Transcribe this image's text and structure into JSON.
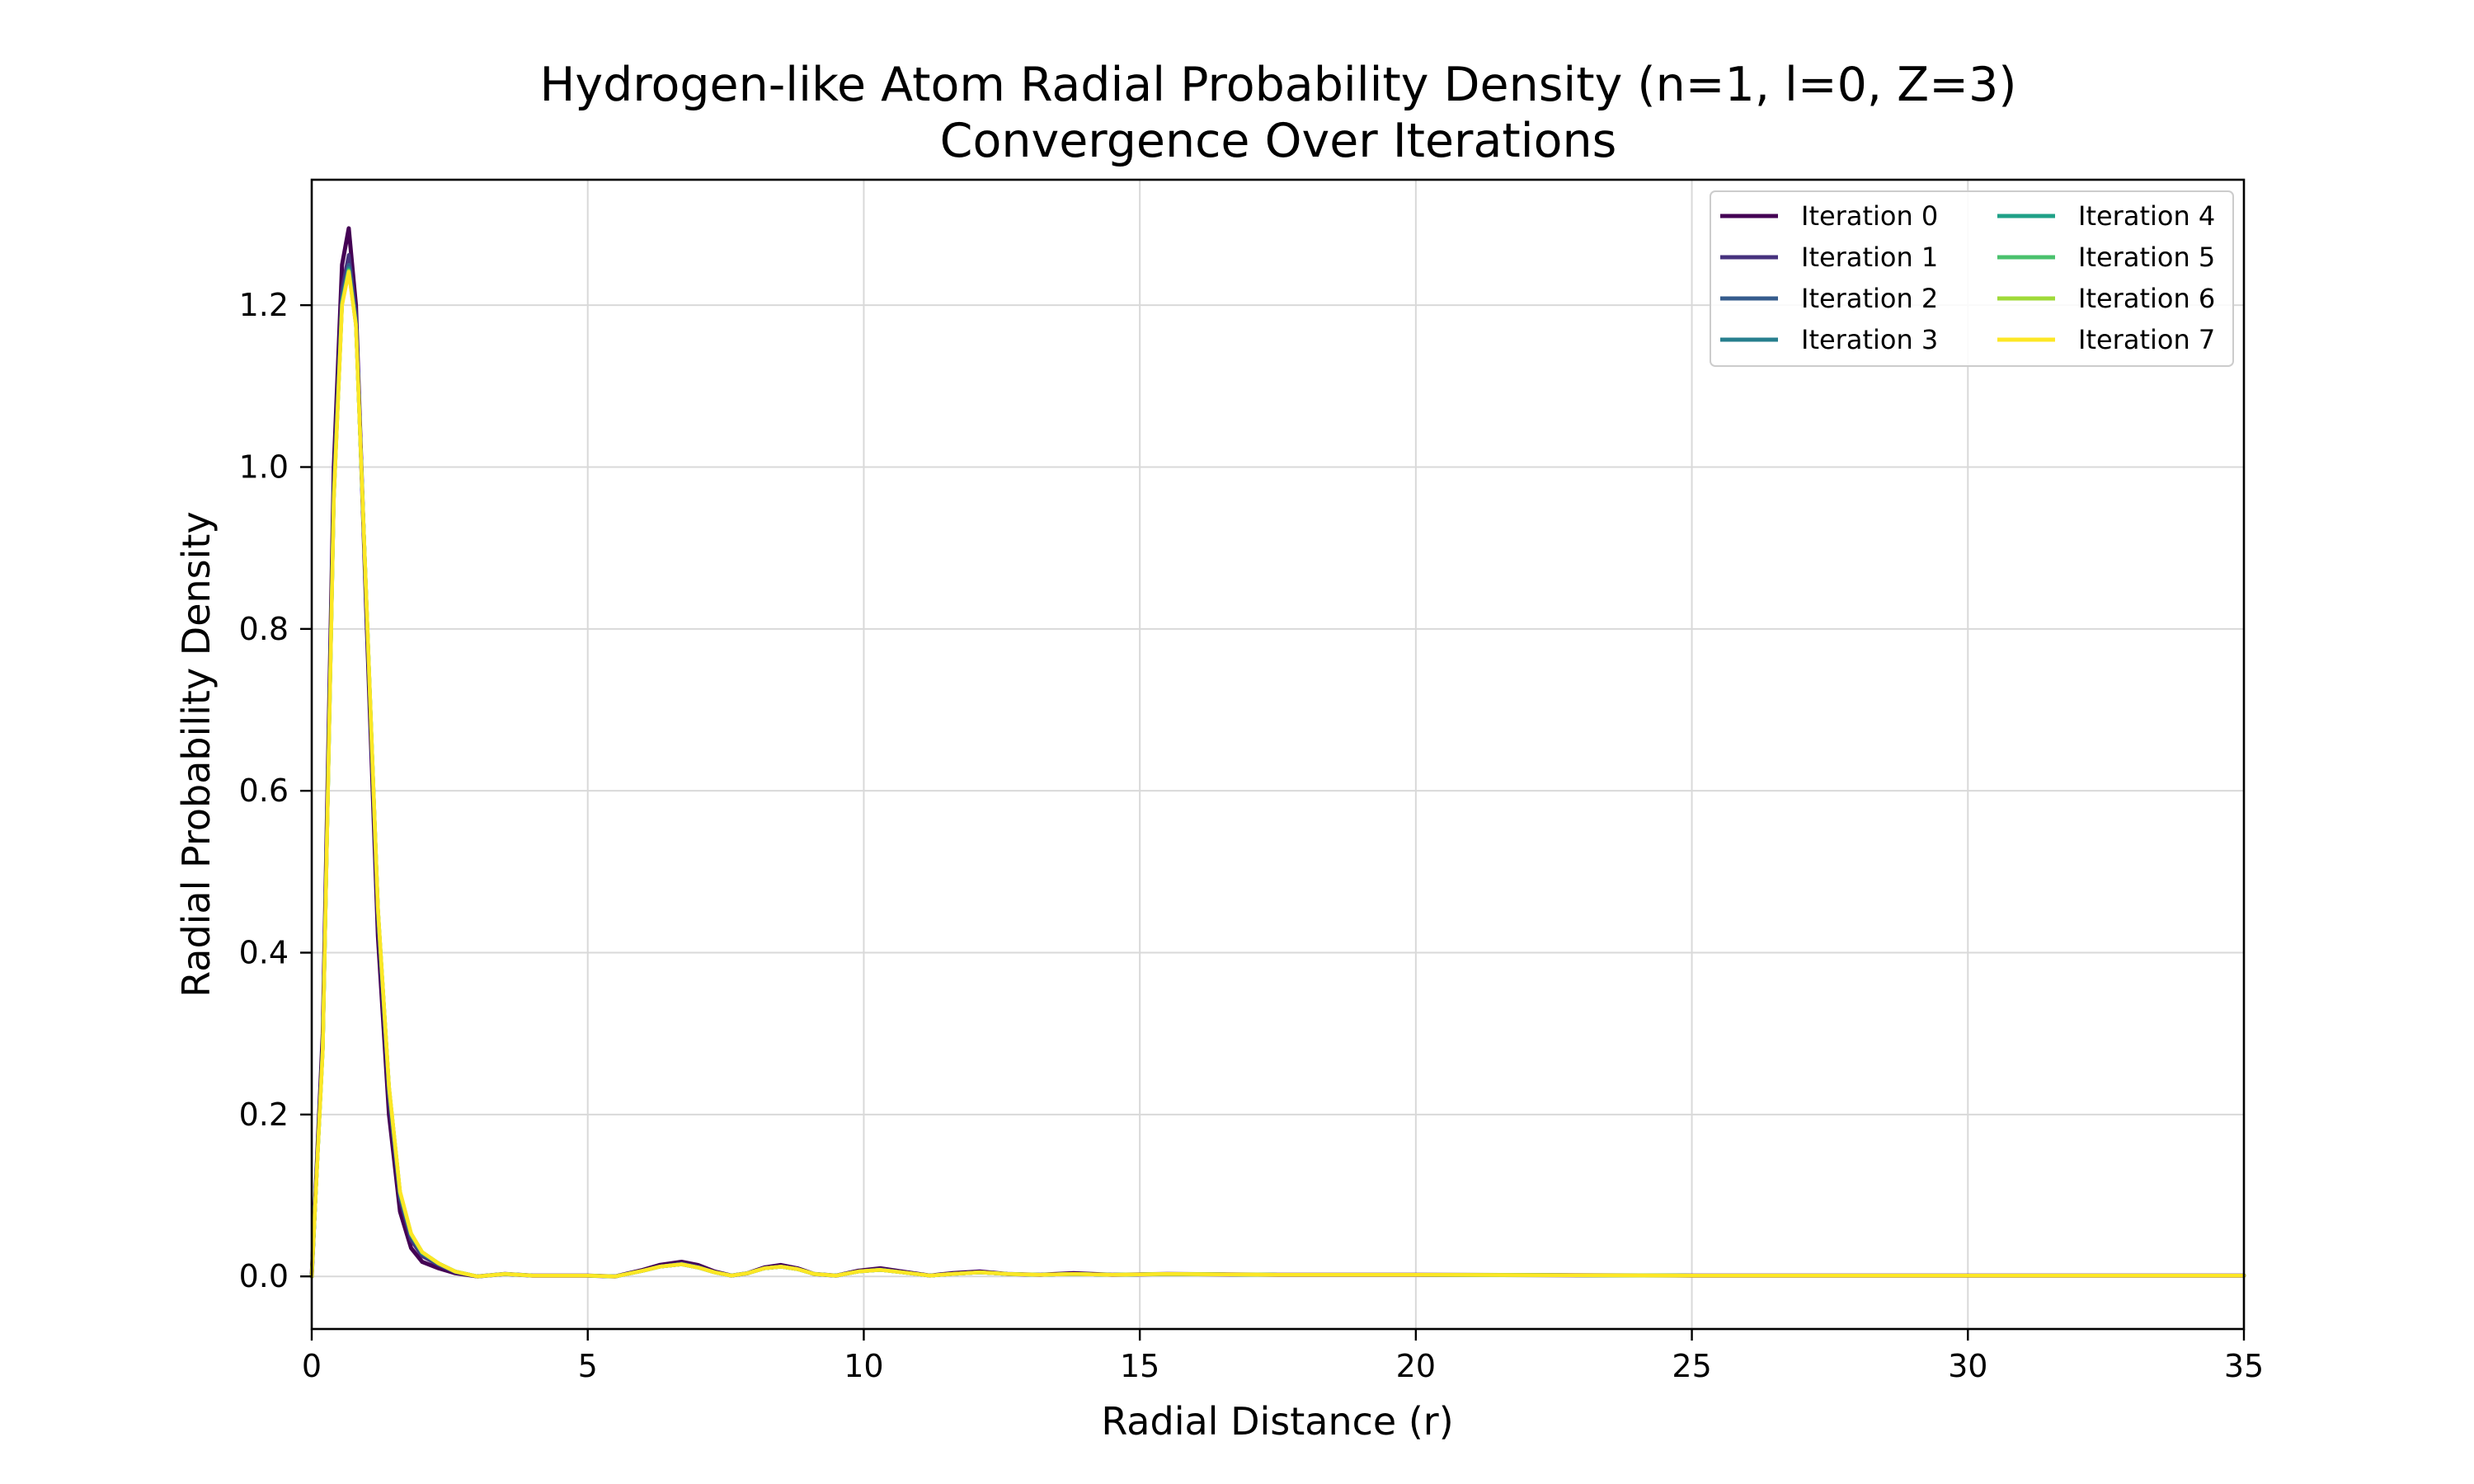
{
  "chart_data": {
    "type": "line",
    "title": "Hydrogen-like Atom Radial Probability Density (n=1, l=0, Z=3)",
    "subtitle": "Convergence Over Iterations",
    "xlabel": "Radial Distance (r)",
    "ylabel": "Radial Probability Density",
    "xlim": [
      0,
      35
    ],
    "ylim": [
      -0.065,
      1.355
    ],
    "xticks": [
      0,
      5,
      10,
      15,
      20,
      25,
      30,
      35
    ],
    "yticks": [
      0.0,
      0.2,
      0.4,
      0.6,
      0.8,
      1.0,
      1.2
    ],
    "xtick_labels": [
      "0",
      "5",
      "10",
      "15",
      "20",
      "25",
      "30",
      "35"
    ],
    "ytick_labels": [
      "0.0",
      "0.2",
      "0.4",
      "0.6",
      "0.8",
      "1.0",
      "1.2"
    ],
    "grid": true,
    "legend_position": "top-right",
    "legend_columns": 2,
    "x": [
      0,
      0.2,
      0.4,
      0.55,
      0.67,
      0.8,
      1.0,
      1.2,
      1.4,
      1.6,
      1.8,
      2.0,
      2.3,
      2.6,
      3.0,
      3.5,
      4.0,
      5.0,
      5.5,
      6.0,
      6.3,
      6.7,
      7.0,
      7.3,
      7.6,
      7.9,
      8.2,
      8.5,
      8.8,
      9.1,
      9.5,
      9.9,
      10.3,
      10.7,
      11.2,
      11.6,
      12.1,
      12.6,
      13.2,
      13.8,
      14.5,
      15.5,
      17.5,
      20,
      25,
      30,
      35
    ],
    "series": [
      {
        "name": "Iteration 0",
        "color": "#440154",
        "values": [
          0.0,
          0.3,
          1.0,
          1.25,
          1.295,
          1.2,
          0.8,
          0.42,
          0.2,
          0.08,
          0.035,
          0.018,
          0.01,
          0.004,
          0.0,
          0.003,
          0.001,
          0.001,
          0.0,
          0.008,
          0.014,
          0.018,
          0.014,
          0.006,
          0.001,
          0.004,
          0.011,
          0.014,
          0.01,
          0.003,
          0.001,
          0.007,
          0.01,
          0.006,
          0.001,
          0.004,
          0.006,
          0.003,
          0.002,
          0.004,
          0.002,
          0.003,
          0.002,
          0.002,
          0.001,
          0.001,
          0.001
        ]
      },
      {
        "name": "Iteration 1",
        "color": "#46327e",
        "values": [
          0.0,
          0.29,
          0.98,
          1.22,
          1.262,
          1.19,
          0.81,
          0.44,
          0.22,
          0.095,
          0.045,
          0.025,
          0.014,
          0.005,
          0.0,
          0.003,
          0.001,
          0.001,
          0.0,
          0.007,
          0.012,
          0.016,
          0.012,
          0.005,
          0.001,
          0.004,
          0.01,
          0.012,
          0.009,
          0.003,
          0.001,
          0.006,
          0.009,
          0.005,
          0.001,
          0.003,
          0.005,
          0.003,
          0.002,
          0.003,
          0.002,
          0.003,
          0.002,
          0.002,
          0.001,
          0.001,
          0.001
        ]
      },
      {
        "name": "Iteration 2",
        "color": "#365c8d",
        "values": [
          0.0,
          0.285,
          0.97,
          1.21,
          1.25,
          1.18,
          0.815,
          0.45,
          0.23,
          0.1,
          0.05,
          0.028,
          0.015,
          0.006,
          0.0,
          0.003,
          0.001,
          0.001,
          0.0,
          0.007,
          0.012,
          0.015,
          0.011,
          0.005,
          0.001,
          0.004,
          0.01,
          0.012,
          0.009,
          0.003,
          0.001,
          0.006,
          0.008,
          0.005,
          0.001,
          0.003,
          0.005,
          0.003,
          0.002,
          0.003,
          0.002,
          0.003,
          0.002,
          0.002,
          0.001,
          0.001,
          0.001
        ]
      },
      {
        "name": "Iteration 3",
        "color": "#277f8e",
        "values": [
          0.0,
          0.283,
          0.965,
          1.205,
          1.246,
          1.178,
          0.818,
          0.452,
          0.232,
          0.102,
          0.051,
          0.029,
          0.016,
          0.006,
          0.0,
          0.003,
          0.001,
          0.001,
          0.0,
          0.007,
          0.012,
          0.015,
          0.011,
          0.005,
          0.001,
          0.004,
          0.01,
          0.012,
          0.009,
          0.003,
          0.001,
          0.006,
          0.008,
          0.005,
          0.001,
          0.003,
          0.005,
          0.003,
          0.002,
          0.003,
          0.002,
          0.003,
          0.002,
          0.002,
          0.001,
          0.001,
          0.001
        ]
      },
      {
        "name": "Iteration 4",
        "color": "#1fa187",
        "values": [
          0.0,
          0.282,
          0.963,
          1.203,
          1.244,
          1.177,
          0.819,
          0.453,
          0.233,
          0.103,
          0.052,
          0.029,
          0.016,
          0.006,
          0.0,
          0.003,
          0.001,
          0.001,
          0.0,
          0.007,
          0.012,
          0.015,
          0.011,
          0.005,
          0.001,
          0.004,
          0.01,
          0.012,
          0.009,
          0.003,
          0.001,
          0.006,
          0.008,
          0.005,
          0.001,
          0.003,
          0.005,
          0.003,
          0.002,
          0.003,
          0.002,
          0.003,
          0.002,
          0.002,
          0.001,
          0.001,
          0.001
        ]
      },
      {
        "name": "Iteration 5",
        "color": "#4ac16d",
        "values": [
          0.0,
          0.281,
          0.962,
          1.202,
          1.243,
          1.176,
          0.82,
          0.454,
          0.234,
          0.104,
          0.052,
          0.03,
          0.016,
          0.006,
          0.0,
          0.003,
          0.001,
          0.001,
          0.0,
          0.007,
          0.012,
          0.015,
          0.011,
          0.005,
          0.001,
          0.004,
          0.01,
          0.012,
          0.009,
          0.003,
          0.001,
          0.006,
          0.008,
          0.005,
          0.001,
          0.003,
          0.005,
          0.003,
          0.002,
          0.003,
          0.002,
          0.003,
          0.002,
          0.002,
          0.001,
          0.001,
          0.001
        ]
      },
      {
        "name": "Iteration 6",
        "color": "#a0da39",
        "values": [
          0.0,
          0.281,
          0.961,
          1.201,
          1.242,
          1.176,
          0.82,
          0.454,
          0.234,
          0.104,
          0.053,
          0.03,
          0.016,
          0.006,
          0.0,
          0.003,
          0.001,
          0.001,
          0.0,
          0.007,
          0.012,
          0.015,
          0.011,
          0.005,
          0.001,
          0.004,
          0.01,
          0.012,
          0.009,
          0.003,
          0.001,
          0.006,
          0.008,
          0.005,
          0.001,
          0.003,
          0.005,
          0.003,
          0.002,
          0.003,
          0.002,
          0.003,
          0.002,
          0.002,
          0.001,
          0.001,
          0.001
        ]
      },
      {
        "name": "Iteration 7",
        "color": "#fde725",
        "values": [
          0.0,
          0.28,
          0.96,
          1.2,
          1.241,
          1.175,
          0.821,
          0.455,
          0.235,
          0.105,
          0.053,
          0.03,
          0.016,
          0.006,
          0.0,
          0.003,
          0.001,
          0.001,
          0.0,
          0.007,
          0.012,
          0.015,
          0.011,
          0.005,
          0.001,
          0.004,
          0.01,
          0.012,
          0.009,
          0.003,
          0.001,
          0.006,
          0.008,
          0.005,
          0.001,
          0.003,
          0.005,
          0.003,
          0.002,
          0.003,
          0.002,
          0.003,
          0.002,
          0.002,
          0.001,
          0.001,
          0.001
        ]
      }
    ]
  }
}
